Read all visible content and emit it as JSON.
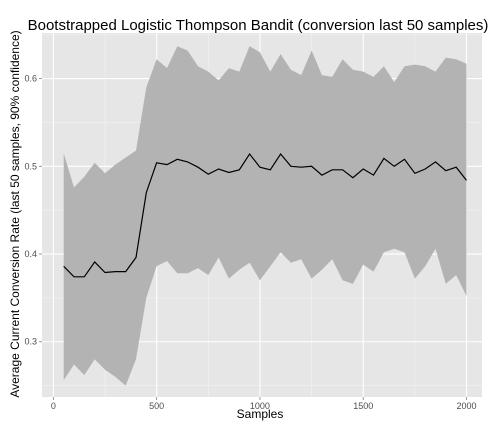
{
  "chart_data": {
    "type": "area",
    "title": "Bootstrapped Logistic Thompson Bandit (conversion last 50 samples)",
    "xlabel": "Samples",
    "ylabel": "Average Current Conversion Rate (last 50 samples, 90% confidence)",
    "xlim": [
      -55,
      2075
    ],
    "ylim": [
      0.237,
      0.652
    ],
    "x_ticks": [
      0,
      500,
      1000,
      1500,
      2000
    ],
    "x_tick_labels": [
      "0",
      "500",
      "1000",
      "1500",
      "2000"
    ],
    "y_ticks": [
      0.3,
      0.4,
      0.5,
      0.6
    ],
    "y_tick_labels": [
      "0.3",
      "0.4",
      "0.5",
      "0.6"
    ],
    "grid": true,
    "colors": {
      "panel": "#e6e6e6",
      "grid_major": "#ffffff",
      "grid_minor": "#f2f2f2",
      "band": "#b3b3b3",
      "line": "#000000"
    },
    "x": [
      50,
      100,
      150,
      200,
      250,
      300,
      350,
      400,
      450,
      500,
      550,
      600,
      650,
      700,
      750,
      800,
      850,
      900,
      950,
      1000,
      1050,
      1100,
      1150,
      1200,
      1250,
      1300,
      1350,
      1400,
      1450,
      1500,
      1550,
      1600,
      1650,
      1700,
      1750,
      1800,
      1850,
      1900,
      1950,
      2000
    ],
    "mean": [
      0.386,
      0.374,
      0.374,
      0.391,
      0.379,
      0.38,
      0.38,
      0.396,
      0.47,
      0.504,
      0.502,
      0.508,
      0.505,
      0.499,
      0.491,
      0.497,
      0.493,
      0.496,
      0.514,
      0.499,
      0.496,
      0.514,
      0.5,
      0.499,
      0.5,
      0.49,
      0.496,
      0.496,
      0.487,
      0.497,
      0.49,
      0.509,
      0.5,
      0.508,
      0.492,
      0.497,
      0.505,
      0.495,
      0.499,
      0.484
    ],
    "upper": [
      0.515,
      0.476,
      0.488,
      0.504,
      0.492,
      0.502,
      0.51,
      0.518,
      0.59,
      0.622,
      0.612,
      0.637,
      0.632,
      0.614,
      0.608,
      0.598,
      0.612,
      0.608,
      0.637,
      0.63,
      0.608,
      0.628,
      0.61,
      0.604,
      0.632,
      0.604,
      0.602,
      0.622,
      0.61,
      0.608,
      0.602,
      0.614,
      0.596,
      0.614,
      0.616,
      0.614,
      0.608,
      0.624,
      0.622,
      0.617
    ],
    "lower": [
      0.256,
      0.274,
      0.262,
      0.28,
      0.268,
      0.26,
      0.25,
      0.28,
      0.35,
      0.386,
      0.392,
      0.378,
      0.378,
      0.384,
      0.376,
      0.396,
      0.372,
      0.382,
      0.39,
      0.37,
      0.386,
      0.402,
      0.39,
      0.394,
      0.372,
      0.382,
      0.394,
      0.37,
      0.366,
      0.388,
      0.38,
      0.402,
      0.406,
      0.402,
      0.372,
      0.386,
      0.406,
      0.366,
      0.376,
      0.352
    ]
  }
}
